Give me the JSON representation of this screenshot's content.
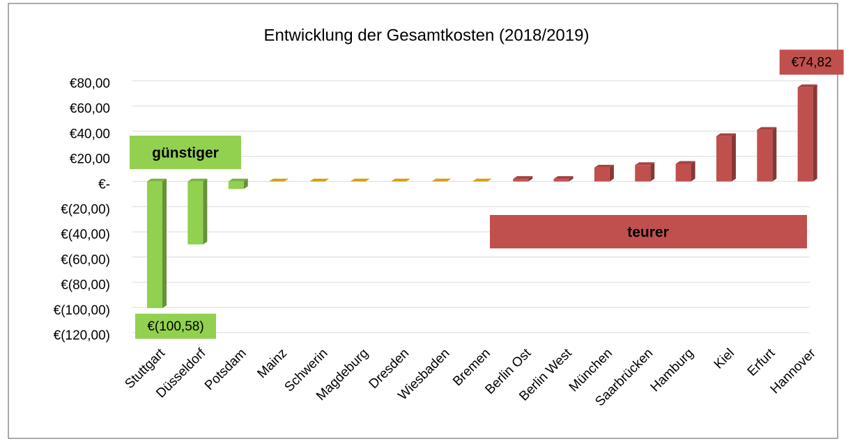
{
  "chart_data": {
    "type": "bar",
    "title": "Entwicklung der Gesamtkosten (2018/2019)",
    "categories": [
      "Stuttgart",
      "Düsseldorf",
      "Potsdam",
      "Mainz",
      "Schwerin",
      "Magdeburg",
      "Dresden",
      "Wiesbaden",
      "Bremen",
      "Berlin Ost",
      "Berlin West",
      "München",
      "Saarbrücken",
      "Hamburg",
      "Kiel",
      "Erfurt",
      "Hannover"
    ],
    "values": [
      -100.58,
      -50,
      -6,
      0,
      0,
      0,
      0,
      0,
      0,
      2,
      2,
      11,
      13,
      14,
      36,
      41,
      74.82
    ],
    "value_labels": [
      "€(100,58)",
      null,
      null,
      null,
      null,
      null,
      null,
      null,
      null,
      null,
      null,
      null,
      null,
      null,
      null,
      null,
      "€74,82"
    ],
    "colors": [
      "#92d050",
      "#92d050",
      "#92d050",
      "#d4a017",
      "#d4a017",
      "#d4a017",
      "#d4a017",
      "#d4a017",
      "#d4a017",
      "#c0504d",
      "#c0504d",
      "#c0504d",
      "#c0504d",
      "#c0504d",
      "#c0504d",
      "#c0504d",
      "#c0504d"
    ],
    "ylim": [
      -120,
      80
    ],
    "yticks": [
      {
        "value": -120,
        "label": "€(120,00)"
      },
      {
        "value": -100,
        "label": "€(100,00)"
      },
      {
        "value": -80,
        "label": "€(80,00)"
      },
      {
        "value": -60,
        "label": "€(60,00)"
      },
      {
        "value": -40,
        "label": "€(40,00)"
      },
      {
        "value": -20,
        "label": "€(20,00)"
      },
      {
        "value": 0,
        "label": "€-"
      },
      {
        "value": 20,
        "label": "€20,00"
      },
      {
        "value": 40,
        "label": "€40,00"
      },
      {
        "value": 60,
        "label": "€60,00"
      },
      {
        "value": 80,
        "label": "€80,00"
      }
    ],
    "grid": true,
    "annotations": [
      "günstiger",
      "teurer"
    ]
  }
}
